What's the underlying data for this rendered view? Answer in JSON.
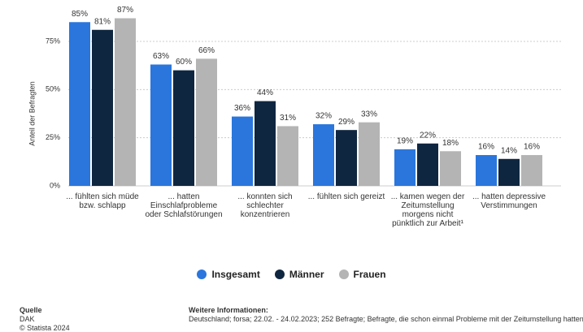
{
  "chart_data": {
    "type": "bar",
    "y_label": "Anteil der Befragten",
    "categories": [
      "... fühlten sich müde bzw. schlapp",
      "... hatten Einschlafprobleme oder Schlafstörungen",
      "... konnten sich schlechter konzentrieren",
      "... fühlten sich gereizt",
      "... kamen wegen der Zeitumstellung morgens nicht pünktlich zur Arbeit¹",
      "... hatten depressive Verstimmungen"
    ],
    "series": [
      {
        "name": "Insgesamt",
        "color": "#2a76dd",
        "values": [
          85,
          63,
          36,
          32,
          19,
          16
        ],
        "value_labels": [
          "85%",
          "63%",
          "36%",
          "32%",
          "19%",
          "16%"
        ]
      },
      {
        "name": "Männer",
        "color": "#0f2640",
        "values": [
          81,
          60,
          44,
          29,
          22,
          14
        ],
        "value_labels": [
          "81%",
          "60%",
          "44%",
          "29%",
          "22%",
          "14%"
        ]
      },
      {
        "name": "Frauen",
        "color": "#b4b4b4",
        "values": [
          87,
          66,
          31,
          33,
          18,
          16
        ],
        "value_labels": [
          "87%",
          "66%",
          "31%",
          "33%",
          "18%",
          "16%"
        ]
      }
    ],
    "ylim": [
      0,
      90
    ],
    "yticks": [
      {
        "value": 0,
        "label": "0%"
      },
      {
        "value": 25,
        "label": "25%"
      },
      {
        "value": 50,
        "label": "50%"
      },
      {
        "value": 75,
        "label": "75%"
      }
    ],
    "grid": true
  },
  "footer": {
    "source_title": "Quelle",
    "source": "DAK",
    "copyright": "© Statista 2024",
    "info_title": "Weitere Informationen:",
    "info": "Deutschland; forsa; 22.02. - 24.02.2023; 252 Befragte; Befragte, die schon einmal Probleme mit der Zeitumstellung hatten"
  }
}
